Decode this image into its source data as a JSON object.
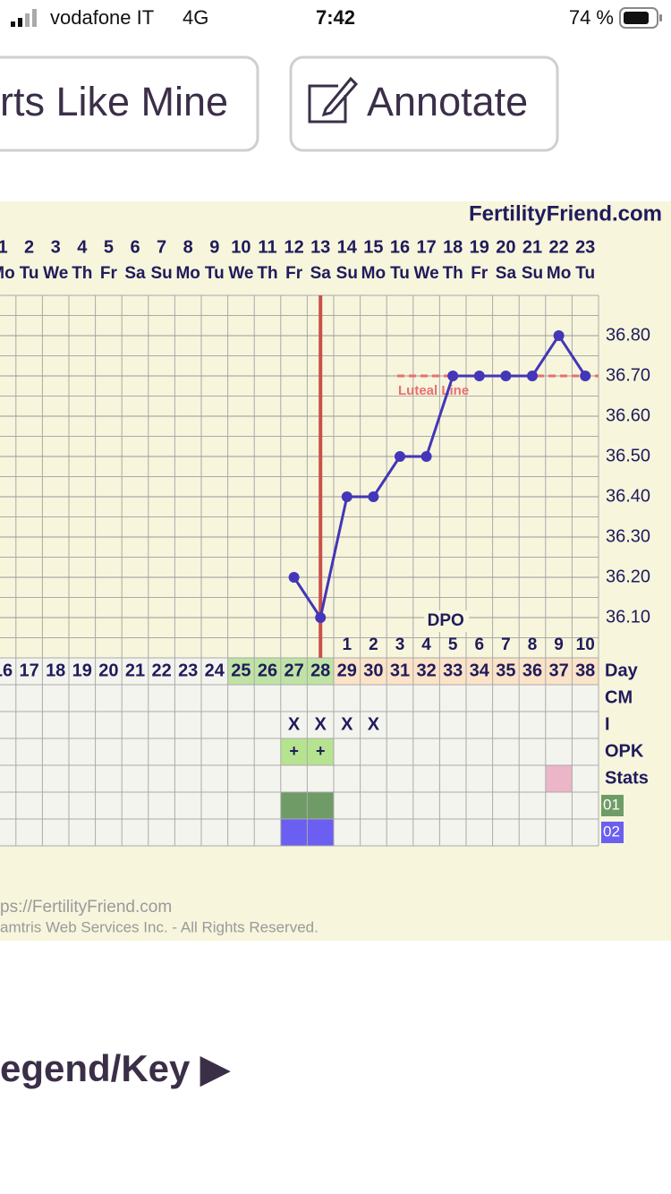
{
  "status_bar": {
    "carrier": "vodafone IT",
    "network": "4G",
    "time": "7:42",
    "battery": "74 %"
  },
  "buttons": [
    "rts Like Mine",
    "Annotate"
  ],
  "chart_data": {
    "type": "line",
    "site": "FertilityFriend.com",
    "categories": [
      "1",
      "2",
      "3",
      "4",
      "5",
      "6",
      "7",
      "8",
      "9",
      "10",
      "11",
      "12",
      "13",
      "14",
      "15",
      "16",
      "17",
      "18",
      "19",
      "20",
      "21",
      "22",
      "23"
    ],
    "weekdays": [
      "Mo",
      "Tu",
      "We",
      "Th",
      "Fr",
      "Sa",
      "Su",
      "Mo",
      "Tu",
      "We",
      "Th",
      "Fr",
      "Sa",
      "Su",
      "Mo",
      "Tu",
      "We",
      "Th",
      "Fr",
      "Sa",
      "Su",
      "Mo",
      "Tu"
    ],
    "values": [
      null,
      null,
      null,
      null,
      null,
      null,
      null,
      null,
      null,
      null,
      null,
      36.2,
      36.1,
      36.4,
      36.4,
      36.5,
      36.5,
      36.7,
      36.7,
      36.7,
      36.7,
      36.8,
      36.7
    ],
    "color": "#4336b8",
    "ylim": [
      36.0,
      36.9
    ],
    "yticks": [
      {
        "value": 36.1,
        "label": "36.10"
      },
      {
        "value": 36.2,
        "label": "36.20"
      },
      {
        "value": 36.3,
        "label": "36.30"
      },
      {
        "value": 36.4,
        "label": "36.40"
      },
      {
        "value": 36.5,
        "label": "36.50"
      },
      {
        "value": 36.6,
        "label": "36.60"
      },
      {
        "value": 36.7,
        "label": "36.70"
      },
      {
        "value": 36.8,
        "label": "36.80"
      }
    ],
    "coverline": {
      "value": 36.7,
      "label": "Luteal Line",
      "color": "#e87070"
    },
    "ovulation_day": 13,
    "ovulation_color": "#c9504a",
    "dpo_label": "DPO",
    "dpo": [
      null,
      null,
      null,
      null,
      null,
      null,
      null,
      null,
      null,
      null,
      null,
      null,
      null,
      1,
      2,
      3,
      4,
      5,
      6,
      7,
      8,
      9,
      10
    ],
    "row_labels": [
      "Day",
      "CM",
      "I",
      "OPK",
      "Stats",
      "01",
      "02"
    ],
    "cycle_days": [
      16,
      17,
      18,
      19,
      20,
      21,
      22,
      23,
      24,
      25,
      26,
      27,
      28,
      29,
      30,
      31,
      32,
      33,
      34,
      35,
      36,
      37,
      38
    ],
    "cycle_day_colors": [
      null,
      null,
      null,
      null,
      null,
      null,
      null,
      null,
      null,
      "#bfe3a4",
      "#bfe3a4",
      "#bfe3a4",
      "#bfe3a4",
      "#fbe3c8",
      "#fbe3c8",
      "#fbe3c8",
      "#fbe3c8",
      "#fbe3c8",
      "#fbe3c8",
      "#fbe3c8",
      "#fbe3c8",
      "#fbe3c8",
      "#fbe3c8"
    ],
    "intercourse": [
      null,
      null,
      null,
      null,
      null,
      null,
      null,
      null,
      null,
      null,
      null,
      "X",
      "X",
      "X",
      "X",
      null,
      null,
      null,
      null,
      null,
      null,
      null,
      null
    ],
    "opk": [
      null,
      null,
      null,
      null,
      null,
      null,
      null,
      null,
      null,
      null,
      null,
      "+",
      "+",
      null,
      null,
      null,
      null,
      null,
      null,
      null,
      null,
      null,
      null
    ],
    "opk_color": "#b6e38f",
    "stats_colors": [
      null,
      null,
      null,
      null,
      null,
      null,
      null,
      null,
      null,
      null,
      null,
      null,
      null,
      null,
      null,
      null,
      null,
      null,
      null,
      null,
      null,
      "#ebb6c8",
      null
    ],
    "row01_color": "#6f9c66",
    "row01": [
      false,
      false,
      false,
      false,
      false,
      false,
      false,
      false,
      false,
      false,
      false,
      true,
      true,
      false,
      false,
      false,
      false,
      false,
      false,
      false,
      false,
      false,
      false
    ],
    "row02_color": "#6a5ff0",
    "row02": [
      false,
      false,
      false,
      false,
      false,
      false,
      false,
      false,
      false,
      false,
      false,
      true,
      true,
      false,
      false,
      false,
      false,
      false,
      false,
      false,
      false,
      false,
      false
    ]
  },
  "footer": {
    "url": "ps://FertilityFriend.com",
    "copyright": "amtris Web Services Inc. - All Rights Reserved."
  },
  "legend_link": "egend/Key ▶"
}
